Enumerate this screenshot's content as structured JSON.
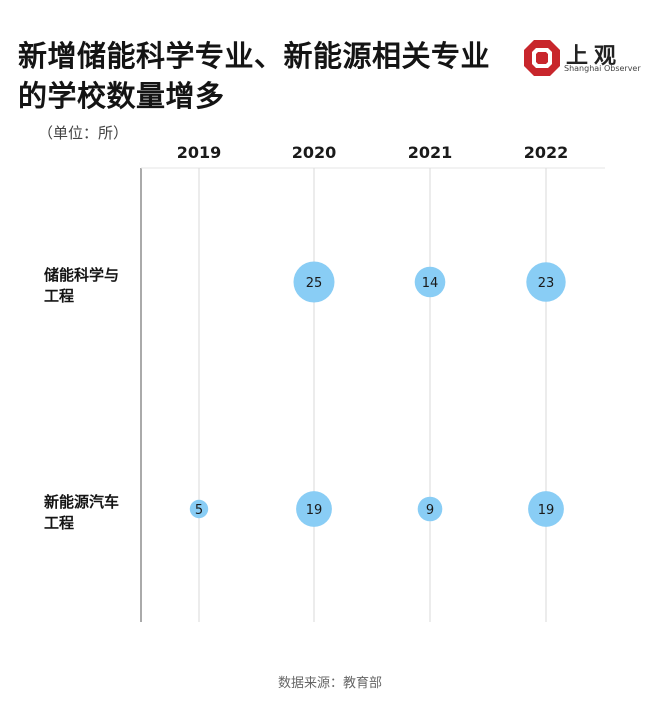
{
  "title_lines": [
    "新增储能科学专业、新能源相关专业",
    "的学校数量增多"
  ],
  "logo": {
    "name": "上观",
    "subtitle": "Shanghai Observer"
  },
  "unit": "（单位：所）",
  "source": "数据来源：教育部",
  "colors": {
    "bubble": "#89cdf5",
    "grid": "#d9d9d9",
    "axis": "#555555"
  },
  "chart_data": {
    "type": "scatter",
    "columns": [
      "2019",
      "2020",
      "2021",
      "2022"
    ],
    "rows": [
      {
        "label_lines": [
          "储能科学与",
          "工程"
        ],
        "values": [
          null,
          25,
          14,
          23
        ]
      },
      {
        "label_lines": [
          "新能源汽车",
          "工程"
        ],
        "values": [
          5,
          19,
          9,
          19
        ]
      }
    ]
  }
}
